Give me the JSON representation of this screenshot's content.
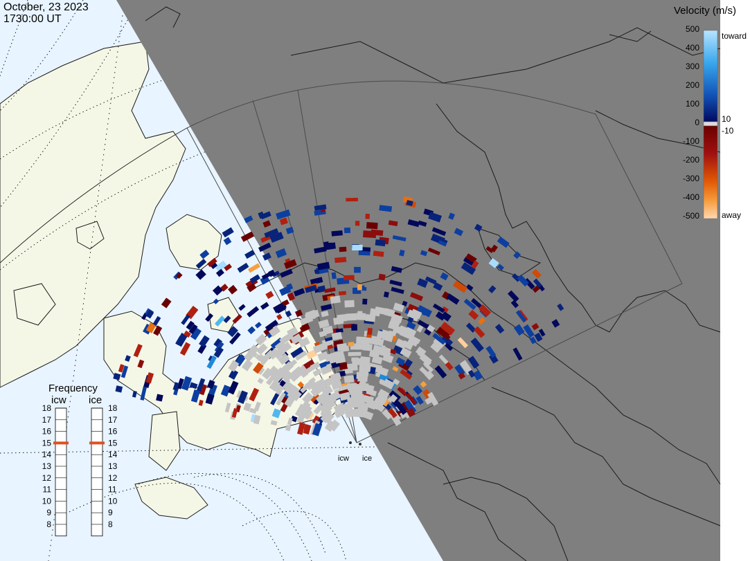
{
  "title": {
    "date": "October, 23 2023",
    "time": "1730:00 UT"
  },
  "velocity_scale": {
    "title": "Velocity (m/s)",
    "toward_label": "toward",
    "away_label": "away",
    "ticks": [
      "500",
      "400",
      "300",
      "200",
      "100",
      "0",
      "-100",
      "-200",
      "-300",
      "-400",
      "-500"
    ],
    "small_ticks": [
      "10",
      "-10"
    ],
    "toward_colors": [
      "#a8dcff",
      "#4fb8f0",
      "#1e8ad8",
      "#1565c0",
      "#0d3fa0",
      "#08237a",
      "#02085a"
    ],
    "away_colors": [
      "#6b0000",
      "#8c0d0d",
      "#b02010",
      "#d04a08",
      "#e87010",
      "#f5a040",
      "#fccf9c"
    ]
  },
  "frequency_panel": {
    "title": "Frequency",
    "columns": [
      {
        "label": "icw",
        "selected": "15"
      },
      {
        "label": "ice",
        "selected": "15"
      }
    ],
    "levels": [
      "18",
      "17",
      "16",
      "15",
      "14",
      "13",
      "12",
      "11",
      "10",
      "9",
      "8"
    ]
  },
  "radar_sites": [
    {
      "label": "icw"
    },
    {
      "label": "ice"
    }
  ],
  "map_colors": {
    "ocean": "#e8f4ff",
    "land": "#f5f7e6",
    "night": "#7f7f7f",
    "coast": "#1a1a1a",
    "ground_scatter": "#c4c4c4"
  }
}
